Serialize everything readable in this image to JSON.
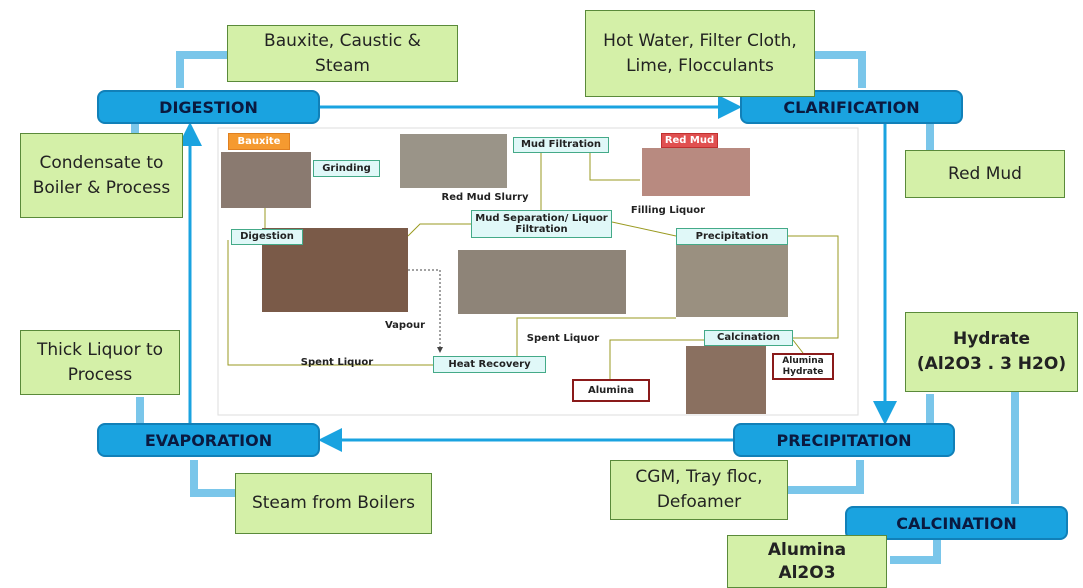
{
  "stages": {
    "digestion": "DIGESTION",
    "clarification": "CLARIFICATION",
    "precipitation": "PRECIPITATION",
    "evaporation": "EVAPORATION",
    "calcination": "CALCINATION"
  },
  "flows": {
    "digestion_in": "Bauxite, Caustic & Steam",
    "clarification_in": "Hot Water, Filter Cloth, Lime, Flocculants",
    "digestion_out": "Condensate to Boiler & Process",
    "clarification_out": "Red Mud",
    "evaporation_out": "Thick Liquor to Process",
    "hydrate_title": "Hydrate",
    "hydrate_formula": "(Al2O3 . 3 H2O)",
    "evaporation_in": "Steam from Boilers",
    "precipitation_in": "CGM, Tray floc, Defoamer",
    "alumina_title": "Alumina",
    "alumina_formula": "Al2O3"
  },
  "process_diagram": {
    "bauxite": "Bauxite",
    "grinding": "Grinding",
    "red_mud_slurry": "Red Mud Slurry",
    "mud_filtration": "Mud Filtration",
    "red_mud": "Red Mud",
    "filling_liquor": "Filling Liquor",
    "digestion": "Digestion",
    "mud_separation": "Mud Separation/ Liquor Filtration",
    "precipitation": "Precipitation",
    "vapour": "Vapour",
    "spent_liquor_1": "Spent Liquor",
    "calcination": "Calcination",
    "spent_liquor_2": "Spent Liquor",
    "heat_recovery": "Heat Recovery",
    "alumina_hydrate": "Alumina Hydrate",
    "alumina": "Alumina"
  }
}
